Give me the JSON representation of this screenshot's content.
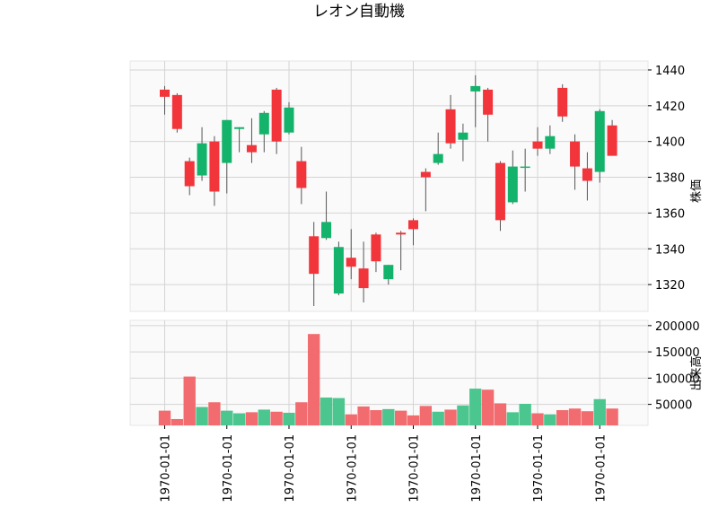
{
  "chart_data": {
    "type": "candlestick",
    "title": "レオン自動機",
    "ylabel_price": "株価",
    "ylabel_volume": "出来高",
    "price_ylim": [
      1305,
      1445
    ],
    "price_ticks": [
      1320,
      1340,
      1360,
      1380,
      1400,
      1420,
      1440
    ],
    "volume_ylim": [
      10000,
      210000
    ],
    "volume_ticks": [
      50000,
      100000,
      150000,
      200000
    ],
    "x_tick_label": "1970-01-01",
    "x_tick_candle_index": [
      0,
      5,
      10,
      15,
      20,
      25,
      30,
      35
    ],
    "up_color": "#13b36b",
    "down_color": "#f2343b",
    "volume_up_color": "#4bc68e",
    "volume_down_color": "#f26b6f",
    "candles": [
      {
        "o": 1429,
        "h": 1431,
        "l": 1415,
        "c": 1425,
        "v": 38000
      },
      {
        "o": 1426,
        "h": 1427,
        "l": 1405,
        "c": 1407,
        "v": 22000
      },
      {
        "o": 1389,
        "h": 1391,
        "l": 1370,
        "c": 1375,
        "v": 103000
      },
      {
        "o": 1381,
        "h": 1408,
        "l": 1378,
        "c": 1399,
        "v": 45000
      },
      {
        "o": 1400,
        "h": 1403,
        "l": 1364,
        "c": 1372,
        "v": 54000
      },
      {
        "o": 1388,
        "h": 1412,
        "l": 1371,
        "c": 1412,
        "v": 38000
      },
      {
        "o": 1407,
        "h": 1408,
        "l": 1394,
        "c": 1408,
        "v": 33000
      },
      {
        "o": 1398,
        "h": 1413,
        "l": 1388,
        "c": 1394,
        "v": 35000
      },
      {
        "o": 1404,
        "h": 1417,
        "l": 1394,
        "c": 1416,
        "v": 40000
      },
      {
        "o": 1429,
        "h": 1430,
        "l": 1393,
        "c": 1400,
        "v": 36000
      },
      {
        "o": 1405,
        "h": 1422,
        "l": 1404,
        "c": 1419,
        "v": 34000
      },
      {
        "o": 1389,
        "h": 1397,
        "l": 1365,
        "c": 1374,
        "v": 54000
      },
      {
        "o": 1347,
        "h": 1355,
        "l": 1308,
        "c": 1326,
        "v": 184000
      },
      {
        "o": 1346,
        "h": 1372,
        "l": 1345,
        "c": 1355,
        "v": 63000
      },
      {
        "o": 1315,
        "h": 1344,
        "l": 1314,
        "c": 1341,
        "v": 62000
      },
      {
        "o": 1335,
        "h": 1351,
        "l": 1323,
        "c": 1330,
        "v": 31000
      },
      {
        "o": 1329,
        "h": 1344,
        "l": 1310,
        "c": 1318,
        "v": 46000
      },
      {
        "o": 1348,
        "h": 1349,
        "l": 1327,
        "c": 1333,
        "v": 39000
      },
      {
        "o": 1323,
        "h": 1331,
        "l": 1320,
        "c": 1331,
        "v": 41000
      },
      {
        "o": 1349,
        "h": 1350,
        "l": 1328,
        "c": 1348,
        "v": 38000
      },
      {
        "o": 1356,
        "h": 1357,
        "l": 1342,
        "c": 1351,
        "v": 29000
      },
      {
        "o": 1383,
        "h": 1385,
        "l": 1361,
        "c": 1380,
        "v": 47000
      },
      {
        "o": 1388,
        "h": 1405,
        "l": 1387,
        "c": 1393,
        "v": 36000
      },
      {
        "o": 1418,
        "h": 1426,
        "l": 1396,
        "c": 1399,
        "v": 40000
      },
      {
        "o": 1401,
        "h": 1410,
        "l": 1389,
        "c": 1405,
        "v": 48000
      },
      {
        "o": 1428,
        "h": 1437,
        "l": 1408,
        "c": 1431,
        "v": 80000
      },
      {
        "o": 1429,
        "h": 1430,
        "l": 1400,
        "c": 1415,
        "v": 78000
      },
      {
        "o": 1388,
        "h": 1389,
        "l": 1350,
        "c": 1356,
        "v": 52000
      },
      {
        "o": 1366,
        "h": 1395,
        "l": 1365,
        "c": 1386,
        "v": 35000
      },
      {
        "o": 1386,
        "h": 1396,
        "l": 1372,
        "c": 1386,
        "v": 51000
      },
      {
        "o": 1400,
        "h": 1408,
        "l": 1392,
        "c": 1396,
        "v": 33000
      },
      {
        "o": 1396,
        "h": 1409,
        "l": 1393,
        "c": 1403,
        "v": 31000
      },
      {
        "o": 1430,
        "h": 1432,
        "l": 1411,
        "c": 1414,
        "v": 39000
      },
      {
        "o": 1400,
        "h": 1404,
        "l": 1373,
        "c": 1386,
        "v": 42000
      },
      {
        "o": 1385,
        "h": 1394,
        "l": 1367,
        "c": 1378,
        "v": 37000
      },
      {
        "o": 1383,
        "h": 1418,
        "l": 1377,
        "c": 1417,
        "v": 60000
      },
      {
        "o": 1409,
        "h": 1412,
        "l": 1392,
        "c": 1392,
        "v": 42000
      }
    ]
  }
}
